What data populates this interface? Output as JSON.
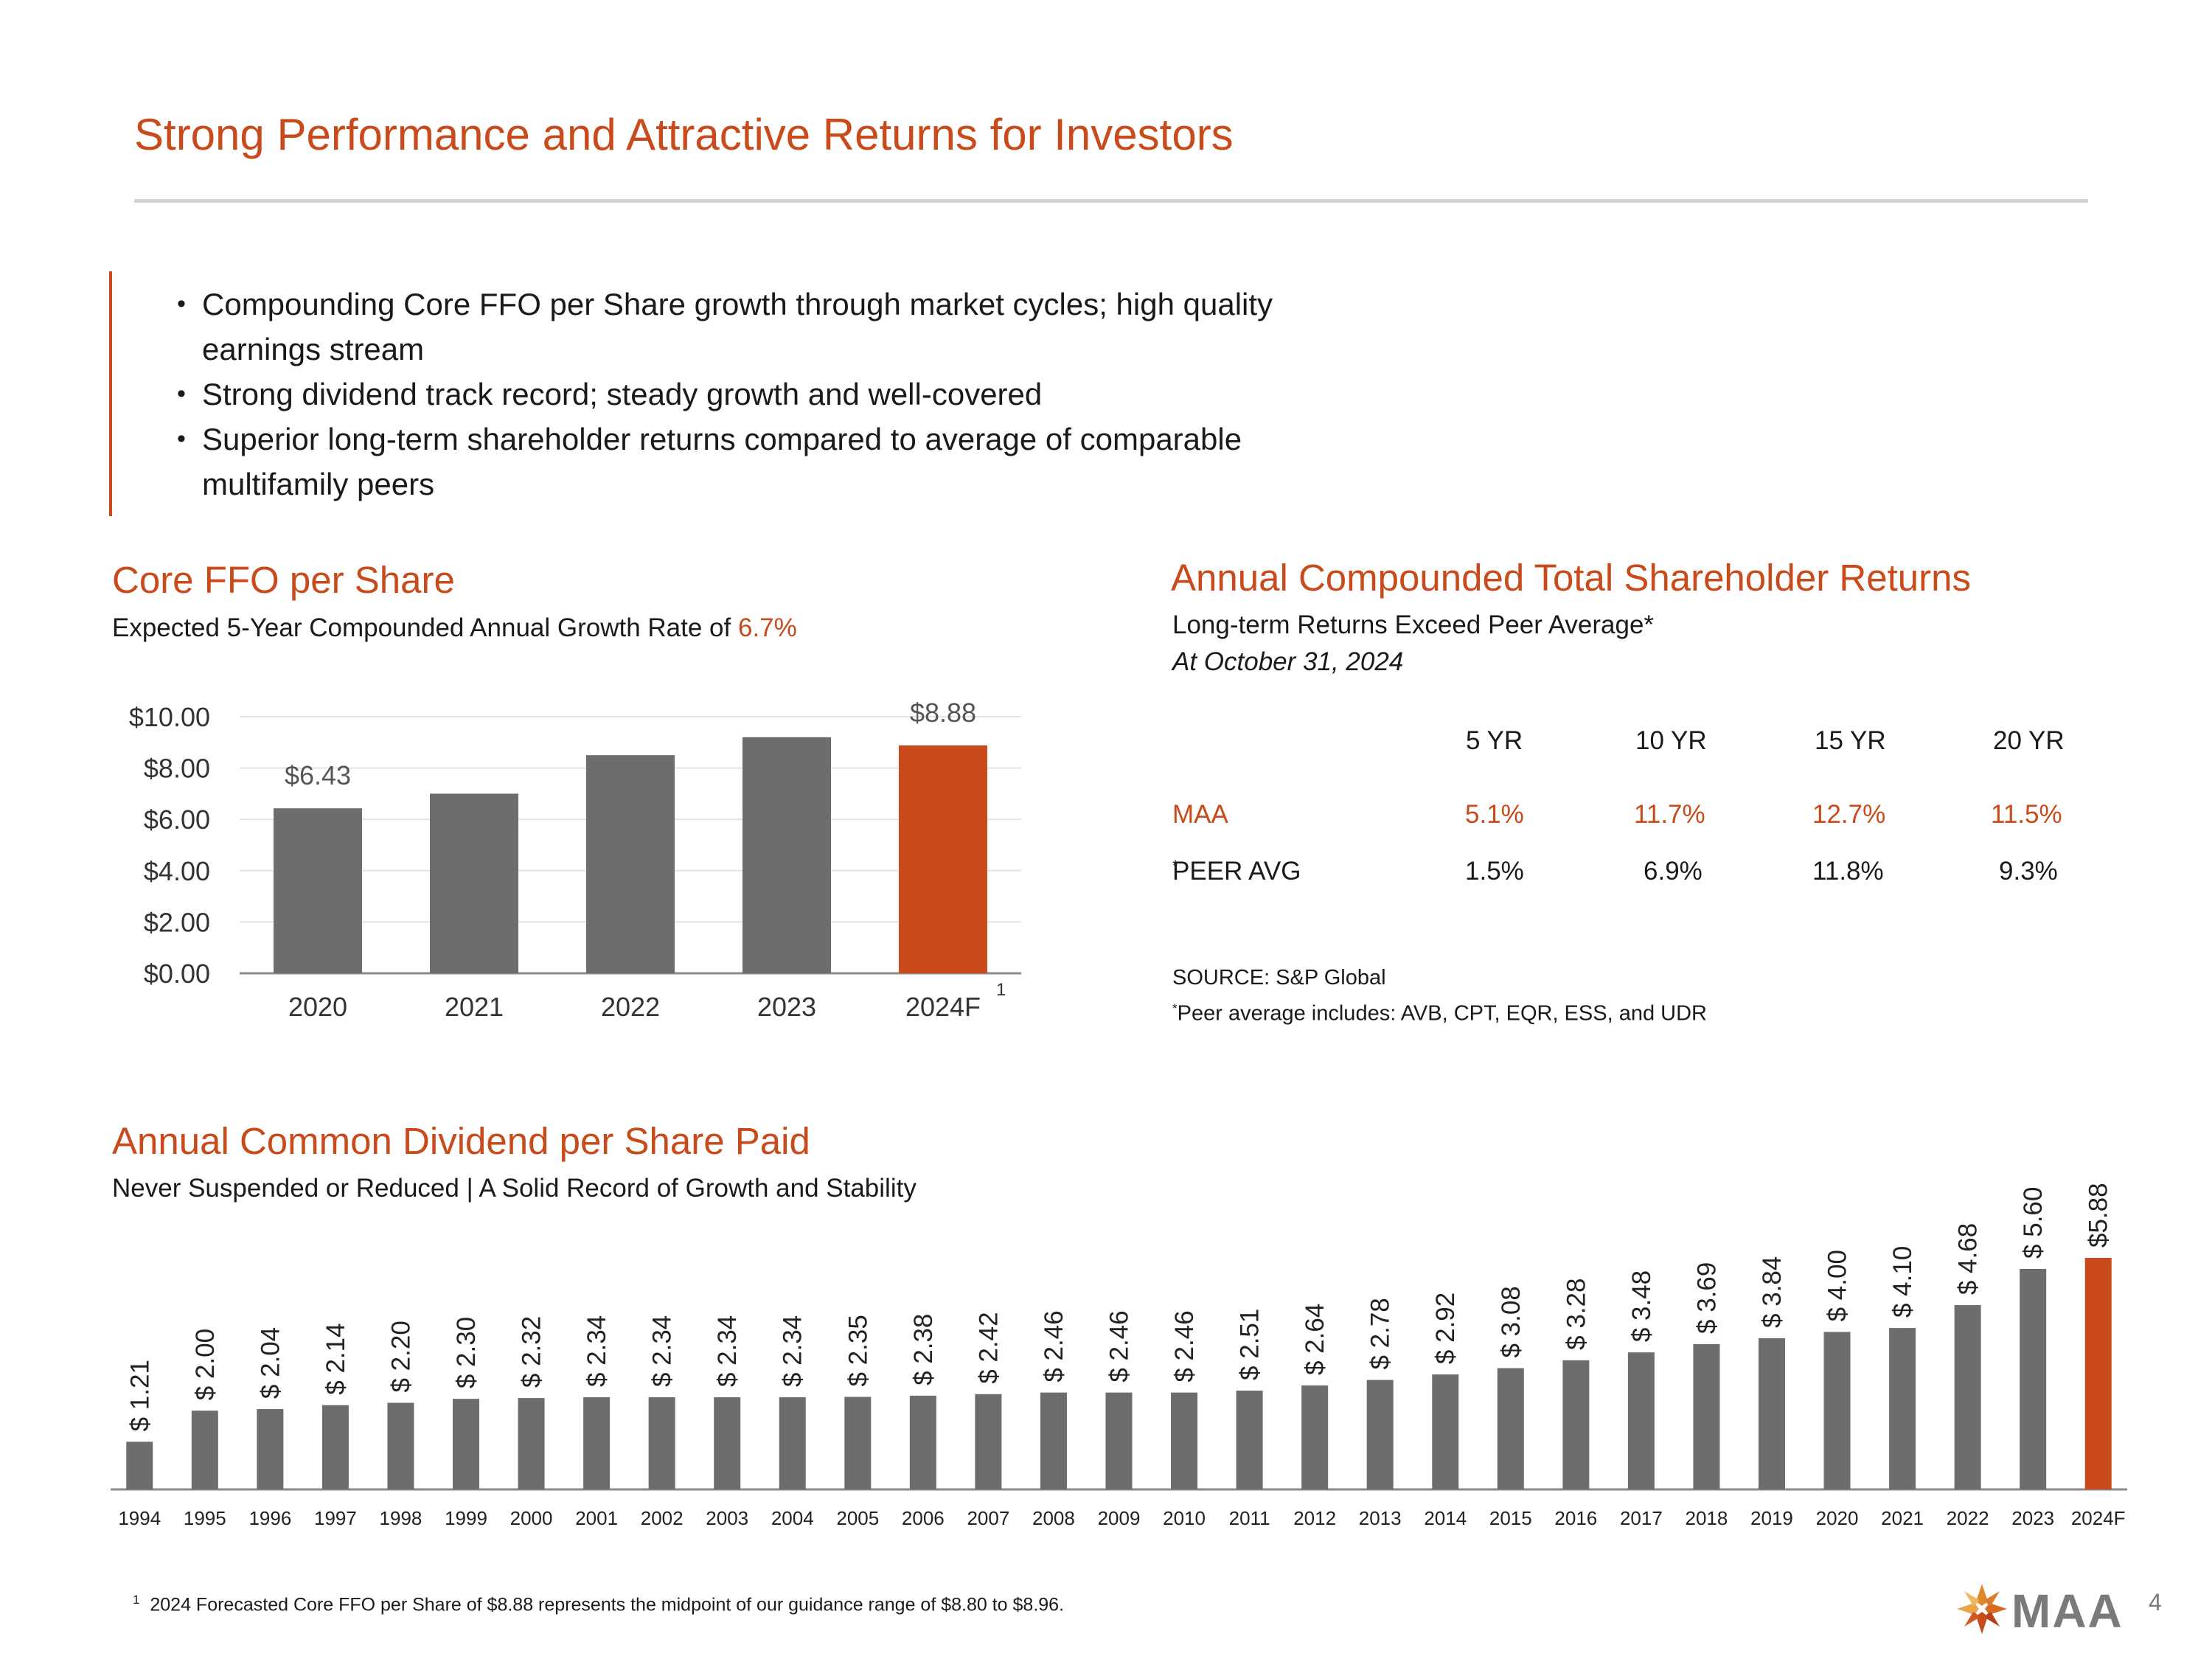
{
  "title": "Strong Performance and Attractive Returns for Investors",
  "bullets": [
    "Compounding Core FFO per Share growth through market cycles; high quality earnings stream",
    "Strong dividend track record; steady growth and well-covered",
    "Superior long-term shareholder returns compared to average of comparable multifamily peers"
  ],
  "ffo": {
    "title": "Core FFO per Share",
    "subtitle_prefix": "Expected 5-Year Compounded Annual Growth Rate of ",
    "subtitle_highlight": "6.7%",
    "footnote_marker": "1"
  },
  "tsr": {
    "title": "Annual Compounded Total Shareholder Returns",
    "subtitle": "Long-term Returns Exceed Peer Average*",
    "as_of": "At October 31, 2024",
    "columns": [
      "5 YR",
      "10 YR",
      "15 YR",
      "20 YR"
    ],
    "rows": [
      {
        "label": "MAA",
        "values": [
          "5.1%",
          "11.7%",
          "12.7%",
          "11.5%"
        ]
      },
      {
        "label": "PEER AVG",
        "label_sup": "*",
        "values": [
          "1.5%",
          "6.9%",
          "11.8%",
          "9.3%"
        ]
      }
    ],
    "source": "SOURCE:  S&P Global",
    "peer_note_sup": "*",
    "peer_note": "Peer average includes: AVB, CPT, EQR, ESS, and UDR"
  },
  "dividend": {
    "title": "Annual Common Dividend per Share Paid",
    "subtitle": "Never Suspended or Reduced | A Solid Record of Growth and Stability"
  },
  "footnote": {
    "marker": "1",
    "text": "2024 Forecasted Core FFO per Share of $8.88 represents the midpoint of our guidance range of $8.80 to $8.96."
  },
  "logo_text": "MAA",
  "page_number": "4",
  "colors": {
    "accent": "#c94a1a",
    "bar": "#6d6e6c",
    "grid": "#e4e4e4"
  },
  "chart_data": [
    {
      "type": "bar",
      "title": "Core FFO per Share",
      "categories": [
        "2020",
        "2021",
        "2022",
        "2023",
        "2024F"
      ],
      "values": [
        6.43,
        7.0,
        8.5,
        9.2,
        8.88
      ],
      "data_labels": {
        "0": "$6.43",
        "4": "$8.88"
      },
      "highlight_index": 4,
      "yticks": [
        "$0.00",
        "$2.00",
        "$4.00",
        "$6.00",
        "$8.00",
        "$10.00"
      ],
      "ylim": [
        0,
        10
      ],
      "grid": true
    },
    {
      "type": "bar",
      "title": "Annual Common Dividend per Share Paid",
      "categories": [
        "1994",
        "1995",
        "1996",
        "1997",
        "1998",
        "1999",
        "2000",
        "2001",
        "2002",
        "2003",
        "2004",
        "2005",
        "2006",
        "2007",
        "2008",
        "2009",
        "2010",
        "2011",
        "2012",
        "2013",
        "2014",
        "2015",
        "2016",
        "2017",
        "2018",
        "2019",
        "2020",
        "2021",
        "2022",
        "2023",
        "2024F"
      ],
      "values": [
        1.21,
        2.0,
        2.04,
        2.14,
        2.2,
        2.3,
        2.32,
        2.34,
        2.34,
        2.34,
        2.34,
        2.35,
        2.38,
        2.42,
        2.46,
        2.46,
        2.46,
        2.51,
        2.64,
        2.78,
        2.92,
        3.08,
        3.28,
        3.48,
        3.69,
        3.84,
        4.0,
        4.1,
        4.68,
        5.6,
        5.88
      ],
      "labels": [
        "$ 1.21",
        "$ 2.00",
        "$ 2.04",
        "$ 2.14",
        "$ 2.20",
        "$ 2.30",
        "$ 2.32",
        "$ 2.34",
        "$ 2.34",
        "$ 2.34",
        "$ 2.34",
        "$ 2.35",
        "$ 2.38",
        "$ 2.42",
        "$ 2.46",
        "$ 2.46",
        "$ 2.46",
        "$ 2.51",
        "$ 2.64",
        "$ 2.78",
        "$ 2.92",
        "$ 3.08",
        "$ 3.28",
        "$ 3.48",
        "$ 3.69",
        "$ 3.84",
        "$ 4.00",
        "$ 4.10",
        "$ 4.68",
        "$ 5.60",
        "$5.88"
      ],
      "highlight_index": 30,
      "grid": false
    }
  ]
}
